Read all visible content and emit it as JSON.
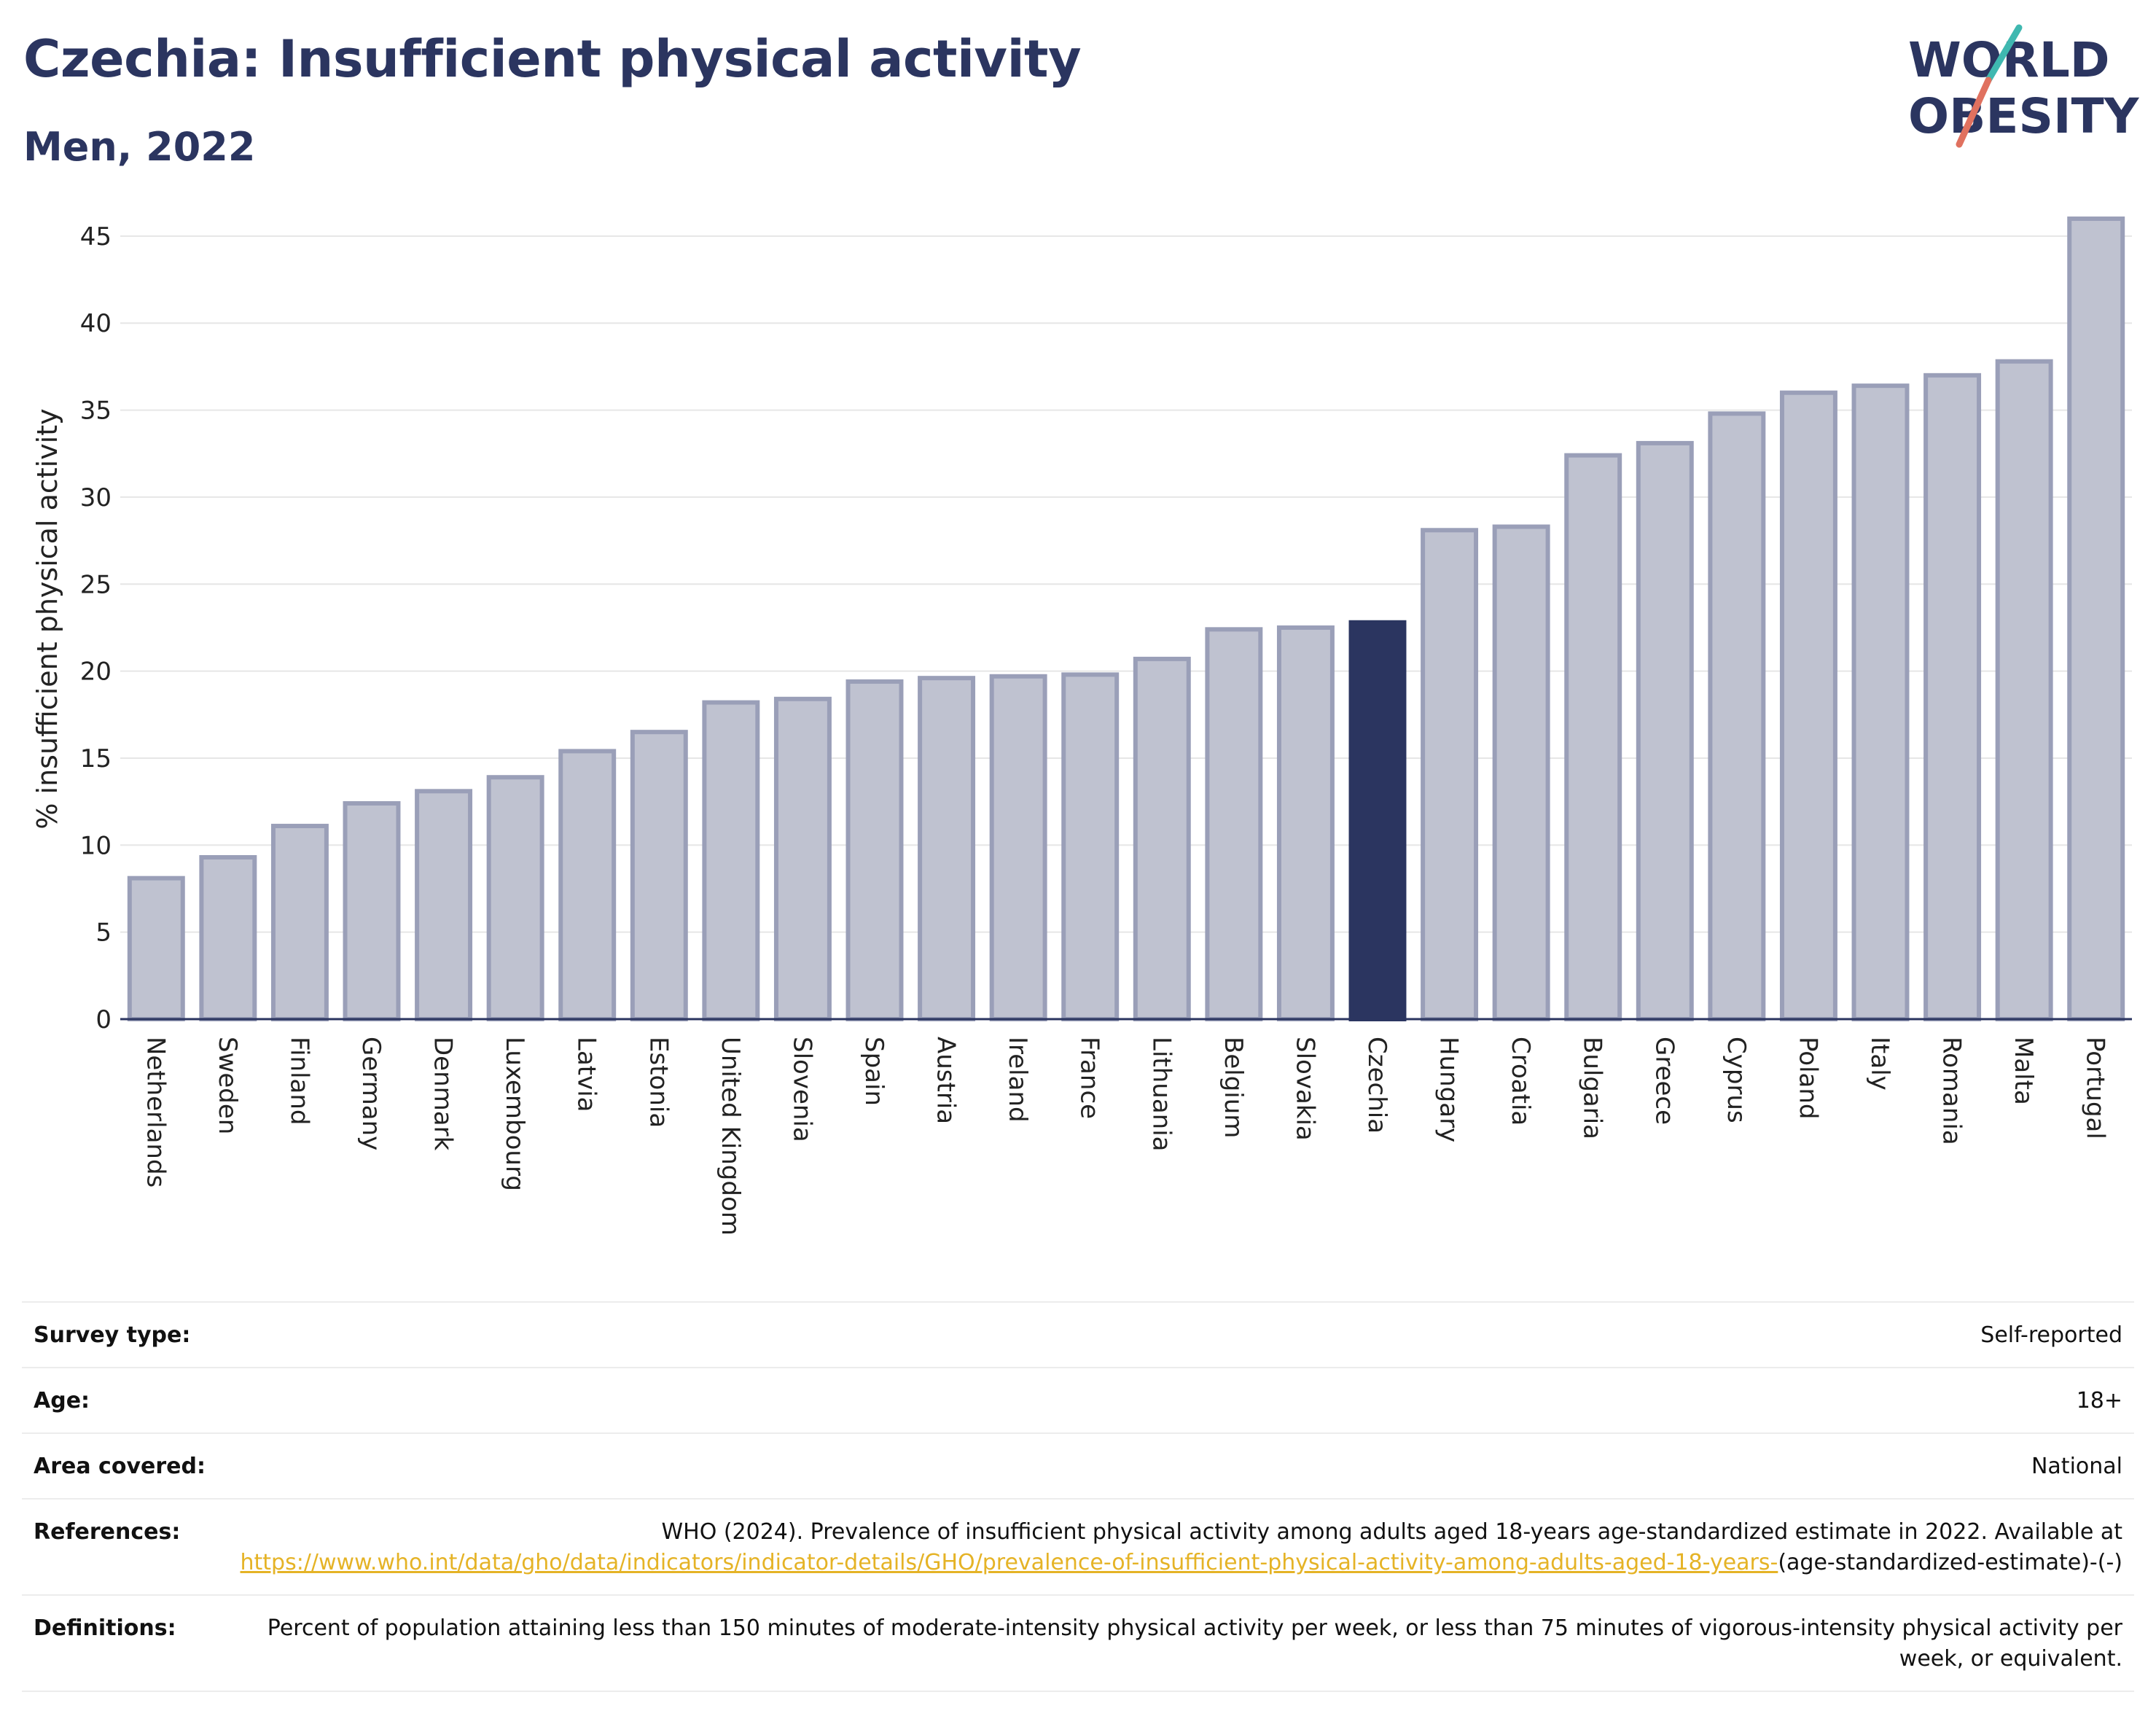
{
  "header": {
    "title": "Czechia: Insufficient physical activity",
    "subtitle": "Men, 2022",
    "logo_line1": "WORLD",
    "logo_line2": "OBESITY"
  },
  "colors": {
    "highlight": "#2b3560",
    "bar": "#bfc2d0",
    "bar_edge": "#9a9fb8",
    "logo_teal": "#3fb8b0",
    "logo_coral": "#e0715f",
    "link": "#e5b326"
  },
  "chart_data": {
    "type": "bar",
    "ylabel": "% insufficient physical activity",
    "xlabel": "",
    "ylim": [
      0,
      46
    ],
    "yticks": [
      0,
      5,
      10,
      15,
      20,
      25,
      30,
      35,
      40,
      45
    ],
    "grid": true,
    "highlight": "Czechia",
    "categories": [
      "Netherlands",
      "Sweden",
      "Finland",
      "Germany",
      "Denmark",
      "Luxembourg",
      "Latvia",
      "Estonia",
      "United Kingdom",
      "Slovenia",
      "Spain",
      "Austria",
      "Ireland",
      "France",
      "Lithuania",
      "Belgium",
      "Slovakia",
      "Czechia",
      "Hungary",
      "Croatia",
      "Bulgaria",
      "Greece",
      "Cyprus",
      "Poland",
      "Italy",
      "Romania",
      "Malta",
      "Portugal"
    ],
    "values": [
      8.1,
      9.3,
      11.1,
      12.4,
      13.1,
      13.9,
      15.4,
      16.5,
      18.2,
      18.4,
      19.4,
      19.6,
      19.7,
      19.8,
      20.7,
      22.4,
      22.5,
      22.8,
      28.1,
      28.3,
      32.4,
      33.1,
      34.8,
      36.0,
      36.4,
      37.0,
      37.8,
      46.0
    ]
  },
  "meta": {
    "survey_type_label": "Survey type:",
    "survey_type_value": "Self-reported",
    "age_label": "Age:",
    "age_value": "18+",
    "area_label": "Area covered:",
    "area_value": "National",
    "references_label": "References:",
    "references_text": "WHO (2024). Prevalence of insufficient physical activity among adults aged 18-years age-standardized estimate in 2022. Available at",
    "references_link": "https://www.who.int/data/gho/data/indicators/indicator-details/GHO/prevalence-of-insufficient-physical-activity-among-adults-aged-18-years-",
    "references_suffix": "(age-standardized-estimate)-(-)",
    "definitions_label": "Definitions:",
    "definitions_text": "Percent of population attaining less than 150 minutes of moderate-intensity physical activity per week, or less than 75 minutes of vigorous-intensity physical activity per week, or equivalent."
  }
}
